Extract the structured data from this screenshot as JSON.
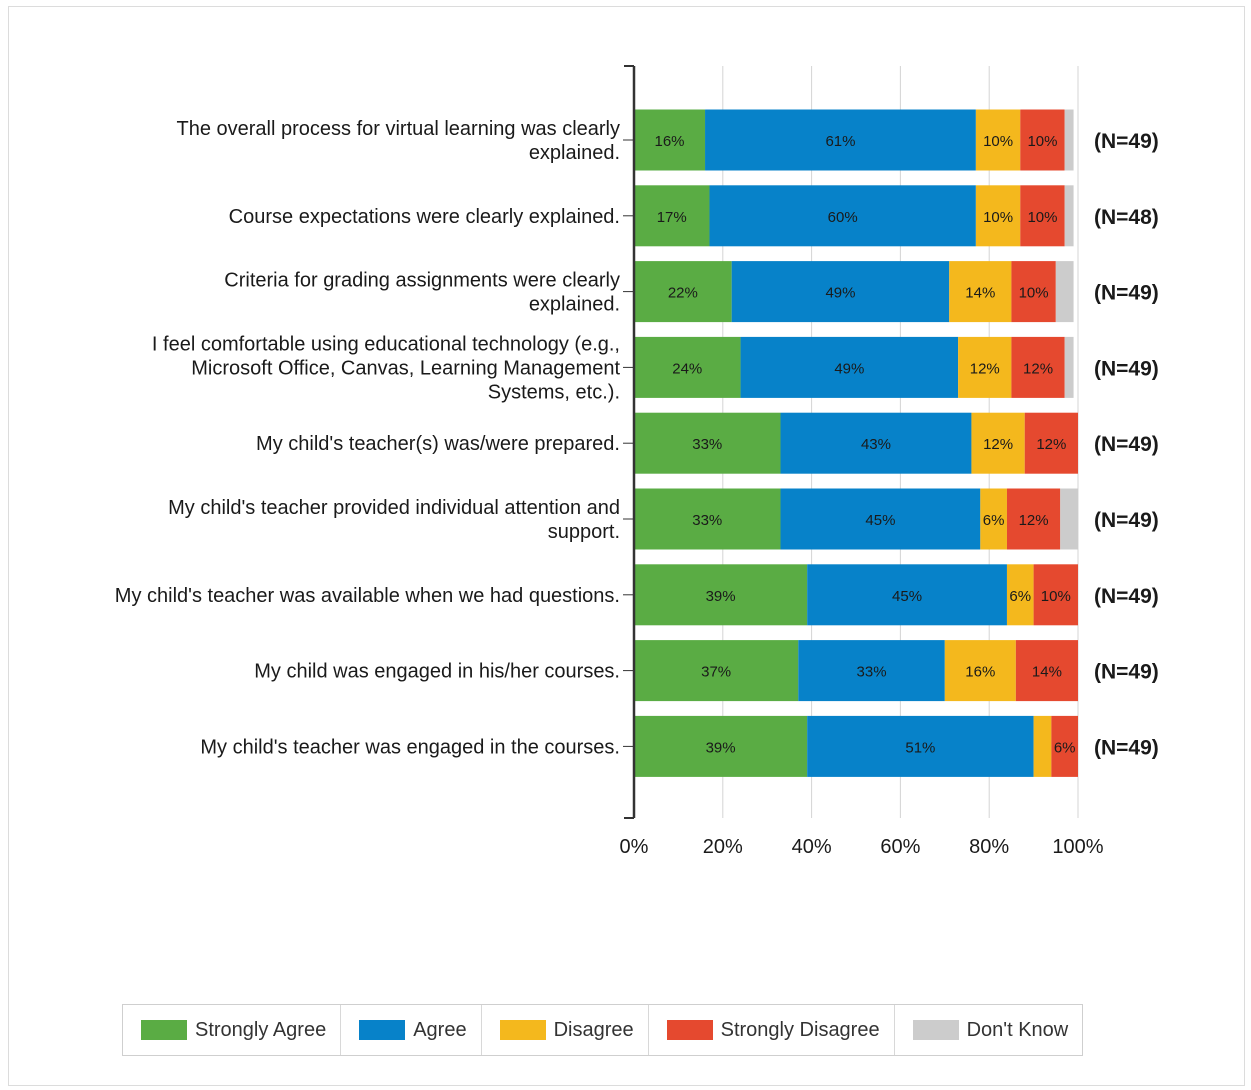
{
  "chart_data": {
    "type": "bar",
    "orientation": "horizontal",
    "stacked": true,
    "categories": [
      "The overall process for virtual learning was clearly explained.",
      "Course expectations were clearly explained.",
      "Criteria for grading assignments were clearly explained.",
      "I feel comfortable using educational technology (e.g., Microsoft Office, Canvas, Learning Management Systems, etc.).",
      "My child's teacher(s) was/were prepared.",
      "My child's teacher provided individual attention and support.",
      "My child's teacher was available when we had questions.",
      "My child was engaged in his/her courses.",
      "My child's teacher was engaged in the courses."
    ],
    "category_lines": [
      [
        "The overall process for virtual learning was clearly",
        "explained."
      ],
      [
        "Course expectations were clearly explained."
      ],
      [
        "Criteria for grading assignments were clearly",
        "explained."
      ],
      [
        "I feel comfortable using educational technology (e.g.,",
        "Microsoft Office, Canvas, Learning Management",
        "Systems, etc.)."
      ],
      [
        "My child's teacher(s) was/were prepared."
      ],
      [
        "My child's teacher provided individual attention and",
        "support."
      ],
      [
        "My child's teacher was available when we had questions."
      ],
      [
        "My child was engaged in his/her courses."
      ],
      [
        "My child's teacher was engaged in the courses."
      ]
    ],
    "series": [
      {
        "name": "Strongly Agree",
        "color": "#5aac44",
        "values": [
          16,
          17,
          22,
          24,
          33,
          33,
          39,
          37,
          39
        ]
      },
      {
        "name": "Agree",
        "color": "#0782c9",
        "values": [
          61,
          60,
          49,
          49,
          43,
          45,
          45,
          33,
          51
        ]
      },
      {
        "name": "Disagree",
        "color": "#f4b81d",
        "values": [
          10,
          10,
          14,
          12,
          12,
          6,
          6,
          16,
          4
        ]
      },
      {
        "name": "Strongly Disagree",
        "color": "#e5492f",
        "values": [
          10,
          10,
          10,
          12,
          12,
          12,
          10,
          14,
          6
        ]
      },
      {
        "name": "Don't Know",
        "color": "#cccccc",
        "values": [
          2,
          2,
          4,
          2,
          0,
          4,
          0,
          0,
          0
        ]
      }
    ],
    "n_labels": [
      "(N=49)",
      "(N=48)",
      "(N=49)",
      "(N=49)",
      "(N=49)",
      "(N=49)",
      "(N=49)",
      "(N=49)",
      "(N=49)"
    ],
    "x_ticks": [
      "0%",
      "20%",
      "40%",
      "60%",
      "80%",
      "100%"
    ],
    "xlim": [
      0,
      100
    ],
    "label_min": 5,
    "grid": true,
    "legend_position": "bottom"
  }
}
